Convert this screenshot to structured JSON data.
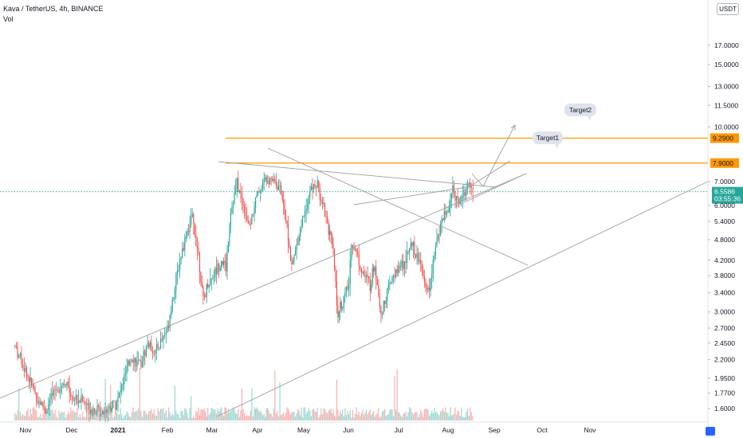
{
  "header": {
    "symbol_line": "Kava / TetherUS, 4h, BINANCE",
    "volume_label": "Vol",
    "currency": "USDT"
  },
  "price_axis": {
    "ticks": [
      "17.0000",
      "15.0000",
      "13.0000",
      "11.5000",
      "10.0000",
      "9.2900",
      "7.9000",
      "7.0000",
      "6.5586",
      "6.0000",
      "5.4000",
      "4.8000",
      "4.2000",
      "3.8000",
      "3.4000",
      "3.0000",
      "2.7000",
      "2.4500",
      "2.2000",
      "1.9500",
      "1.7700",
      "1.6000"
    ],
    "current_price": "6.5586",
    "countdown": "03:55:36"
  },
  "time_axis": {
    "labels": [
      "Nov",
      "Dec",
      "2021",
      "Feb",
      "Mar",
      "Apr",
      "May",
      "Jun",
      "Jul",
      "Aug",
      "Sep",
      "Oct",
      "Nov"
    ]
  },
  "annotations": {
    "target1_label": "Target1",
    "target2_label": "Target2",
    "target1_price": "7.9000",
    "target2_price": "9.2900"
  },
  "colors": {
    "up": "#26a69a",
    "down": "#ef5350",
    "target_line": "#ff9800",
    "current_line": "#26a69a",
    "trend_line": "#9e9e9e"
  },
  "chart_data": {
    "type": "candlestick",
    "scale": "log",
    "x_labels": [
      "Nov",
      "Dec",
      "2021",
      "Feb",
      "Mar",
      "Apr",
      "May",
      "Jun",
      "Jul",
      "Aug",
      "Sep",
      "Oct",
      "Nov"
    ],
    "ylim": [
      1.52,
      21.0
    ],
    "close_path": [
      [
        "Oct 26",
        2.4
      ],
      [
        "Nov 1",
        2.05
      ],
      [
        "Nov 8",
        1.72
      ],
      [
        "Nov 14",
        1.58
      ],
      [
        "Nov 20",
        1.8
      ],
      [
        "Nov 26",
        1.9
      ],
      [
        "Dec 2",
        1.72
      ],
      [
        "Dec 8",
        1.68
      ],
      [
        "Dec 14",
        1.6
      ],
      [
        "Dec 20",
        1.58
      ],
      [
        "Dec 26",
        1.62
      ],
      [
        "Jan 1",
        1.7
      ],
      [
        "Jan 5",
        1.95
      ],
      [
        "Jan 10",
        2.25
      ],
      [
        "Jan 15",
        2.1
      ],
      [
        "Jan 20",
        2.45
      ],
      [
        "Jan 25",
        2.3
      ],
      [
        "Feb 1",
        2.7
      ],
      [
        "Feb 5",
        3.4
      ],
      [
        "Feb 9",
        4.2
      ],
      [
        "Feb 13",
        5.0
      ],
      [
        "Feb 17",
        5.5
      ],
      [
        "Feb 21",
        4.4
      ],
      [
        "Feb 24",
        3.2
      ],
      [
        "Feb 27",
        3.6
      ],
      [
        "Mar 3",
        3.9
      ],
      [
        "Mar 7",
        4.2
      ],
      [
        "Mar 10",
        4.0
      ],
      [
        "Mar 13",
        5.8
      ],
      [
        "Mar 17",
        6.9
      ],
      [
        "Mar 21",
        6.1
      ],
      [
        "Mar 25",
        5.2
      ],
      [
        "Mar 29",
        6.2
      ],
      [
        "Apr 2",
        6.6
      ],
      [
        "Apr 6",
        7.1
      ],
      [
        "Apr 9",
        7.3
      ],
      [
        "Apr 13",
        7.0
      ],
      [
        "Apr 17",
        6.4
      ],
      [
        "Apr 20",
        5.2
      ],
      [
        "Apr 23",
        4.0
      ],
      [
        "Apr 27",
        4.8
      ],
      [
        "May 1",
        5.7
      ],
      [
        "May 5",
        6.6
      ],
      [
        "May 9",
        6.9
      ],
      [
        "May 13",
        6.2
      ],
      [
        "May 17",
        5.2
      ],
      [
        "May 20",
        4.4
      ],
      [
        "May 23",
        3.0
      ],
      [
        "May 26",
        3.2
      ],
      [
        "May 30",
        3.6
      ],
      [
        "Jun 3",
        4.8
      ],
      [
        "Jun 7",
        4.3
      ],
      [
        "Jun 11",
        3.8
      ],
      [
        "Jun 15",
        3.6
      ],
      [
        "Jun 18",
        4.1
      ],
      [
        "Jun 22",
        3.0
      ],
      [
        "Jun 26",
        3.4
      ],
      [
        "Jun 30",
        3.8
      ],
      [
        "Jul 4",
        4.1
      ],
      [
        "Jul 8",
        4.7
      ],
      [
        "Jul 12",
        4.4
      ],
      [
        "Jul 16",
        4.0
      ],
      [
        "Jul 20",
        3.4
      ],
      [
        "Jul 24",
        4.3
      ],
      [
        "Jul 28",
        5.4
      ],
      [
        "Aug 1",
        5.8
      ],
      [
        "Aug 4",
        6.6
      ],
      [
        "Aug 8",
        6.2
      ],
      [
        "Aug 12",
        6.6
      ],
      [
        "Aug 16",
        6.9
      ],
      [
        "Aug 18",
        6.56
      ]
    ],
    "horizontal_levels": [
      {
        "label": "Target1",
        "value": 7.9
      },
      {
        "label": "Target2",
        "value": 9.29
      },
      {
        "label": "current",
        "value": 6.5586
      }
    ],
    "volume": "shown as bars at bottom of pane"
  }
}
